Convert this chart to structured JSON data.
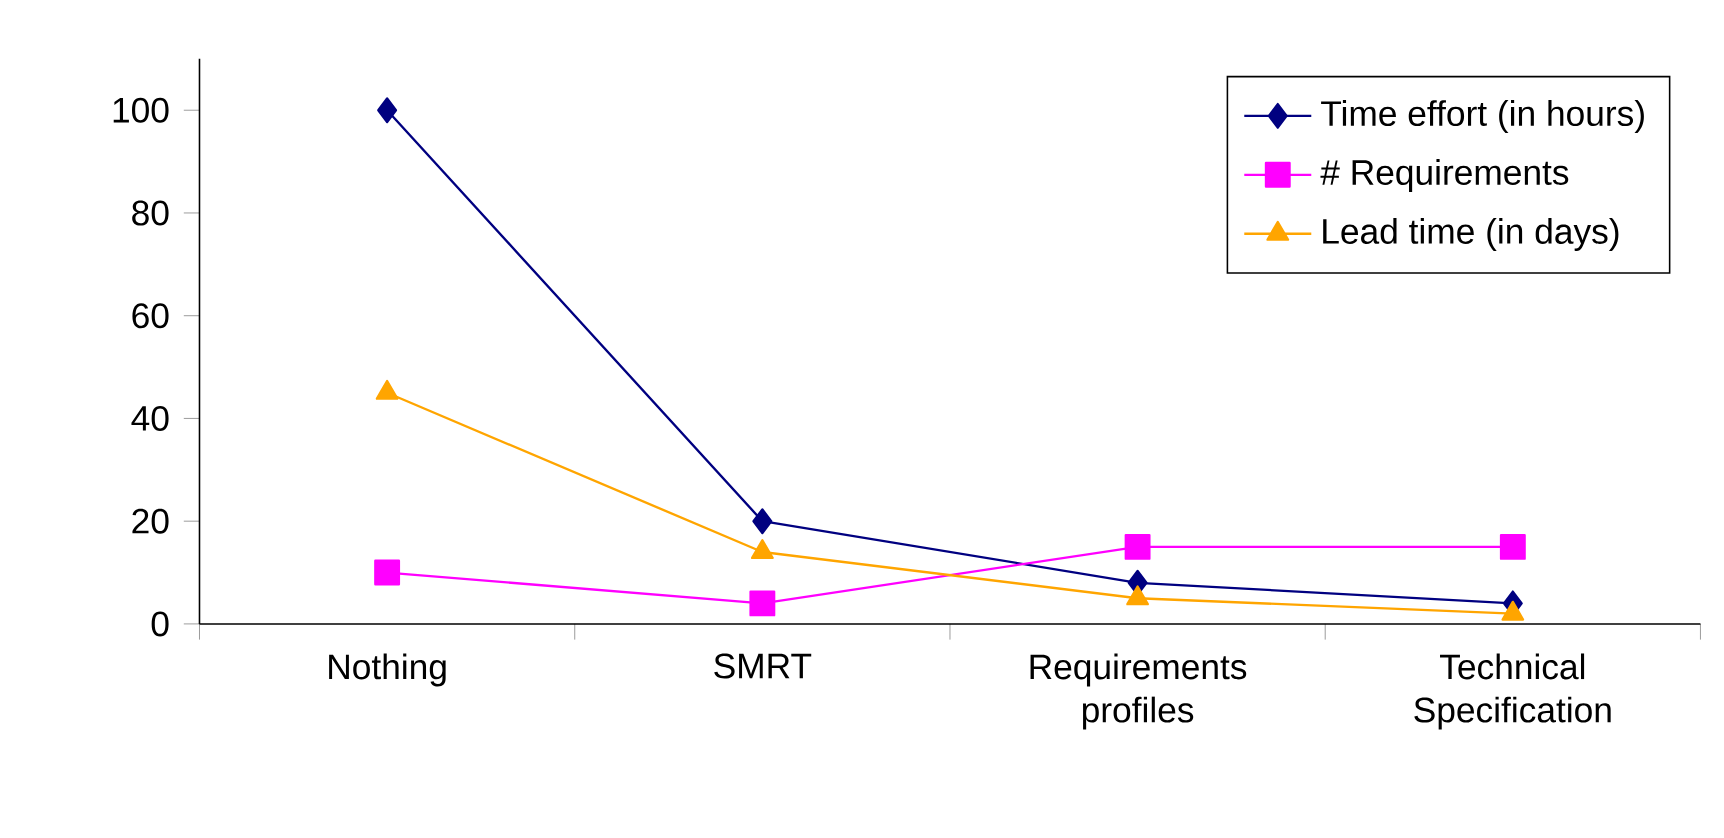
{
  "chart_data": {
    "type": "line",
    "categories": [
      "Nothing",
      "SMRT",
      "Requirements profiles",
      "Technical Specification"
    ],
    "ylim": [
      0,
      110
    ],
    "yticks": [
      0,
      20,
      40,
      60,
      80,
      100
    ],
    "grid": false,
    "legend": "top right",
    "line_style": "solid",
    "series": [
      {
        "name": "Time effort (in hours)",
        "color": "#000080",
        "marker": "diamond",
        "values": [
          100,
          20,
          8,
          4
        ]
      },
      {
        "name": "# Requirements",
        "color": "#ff00ff",
        "marker": "square",
        "values": [
          10,
          4,
          15,
          15
        ]
      },
      {
        "name": "Lead time (in days)",
        "color": "#ffa500",
        "marker": "triangle",
        "values": [
          45,
          14,
          5,
          2
        ]
      }
    ]
  }
}
